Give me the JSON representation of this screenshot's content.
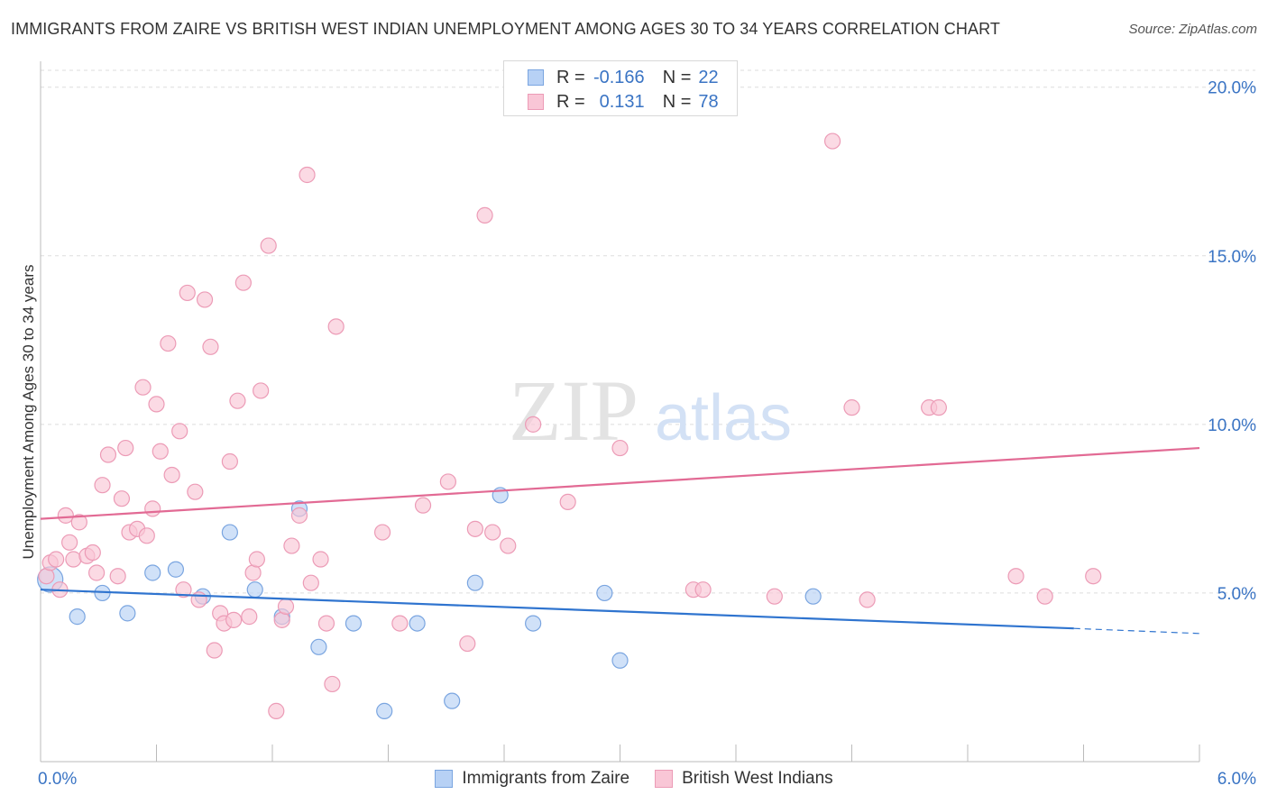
{
  "title": "IMMIGRANTS FROM ZAIRE VS BRITISH WEST INDIAN UNEMPLOYMENT AMONG AGES 30 TO 34 YEARS CORRELATION CHART",
  "source": "Source: ZipAtlas.com",
  "watermark": {
    "zip": "ZIP",
    "atlas": "atlas"
  },
  "legend": {
    "r_label": "R =",
    "n_label": "N =",
    "series": [
      {
        "name": "Immigrants from Zaire",
        "r": "-0.166",
        "n": "22"
      },
      {
        "name": "British West Indians",
        "r": "0.131",
        "n": "78"
      }
    ]
  },
  "chart_data": {
    "type": "scatter",
    "title": "IMMIGRANTS FROM ZAIRE VS BRITISH WEST INDIAN UNEMPLOYMENT AMONG AGES 30 TO 34 YEARS CORRELATION CHART",
    "xlabel": "",
    "ylabel": "Unemployment Among Ages 30 to 34 years",
    "xlim": [
      0,
      6
    ],
    "ylim": [
      0,
      20.5
    ],
    "x_tick_labels": [
      "0.0%",
      "6.0%"
    ],
    "y_ticks": [
      5,
      10,
      15,
      20
    ],
    "y_tick_labels": [
      "5.0%",
      "10.0%",
      "15.0%",
      "20.0%"
    ],
    "grid": true,
    "legend_position": "top-center",
    "colors": {
      "zaire_fill": "#b7d1f5",
      "zaire_stroke": "#7aa5e0",
      "zaire_line": "#2f74cf",
      "bwi_fill": "#f9c6d6",
      "bwi_stroke": "#ec9bb6",
      "bwi_line": "#e26a94",
      "tick_label": "#3a74c4"
    },
    "series": [
      {
        "name": "Immigrants from Zaire",
        "r": -0.166,
        "n": 22,
        "trend": {
          "x0": 0.0,
          "y0": 5.1,
          "x1": 5.35,
          "y1": 3.95,
          "dash_x1": 6.0,
          "dash_y1": 3.8
        },
        "points": [
          [
            0.05,
            5.4
          ],
          [
            0.19,
            4.3
          ],
          [
            0.32,
            5.0
          ],
          [
            0.45,
            4.4
          ],
          [
            0.58,
            5.6
          ],
          [
            0.7,
            5.7
          ],
          [
            0.84,
            4.9
          ],
          [
            0.98,
            6.8
          ],
          [
            1.11,
            5.1
          ],
          [
            1.25,
            4.3
          ],
          [
            1.34,
            7.5
          ],
          [
            1.44,
            3.4
          ],
          [
            1.62,
            4.1
          ],
          [
            1.78,
            1.5
          ],
          [
            1.95,
            4.1
          ],
          [
            2.13,
            1.8
          ],
          [
            2.25,
            5.3
          ],
          [
            2.38,
            7.9
          ],
          [
            2.55,
            4.1
          ],
          [
            2.92,
            5.0
          ],
          [
            3.0,
            3.0
          ],
          [
            4.0,
            4.9
          ]
        ]
      },
      {
        "name": "British West Indians",
        "r": 0.131,
        "n": 78,
        "trend": {
          "x0": 0.0,
          "y0": 7.2,
          "x1": 6.0,
          "y1": 9.3
        },
        "points": [
          [
            0.03,
            5.5
          ],
          [
            0.05,
            5.9
          ],
          [
            0.08,
            6.0
          ],
          [
            0.1,
            5.1
          ],
          [
            0.13,
            7.3
          ],
          [
            0.15,
            6.5
          ],
          [
            0.17,
            6.0
          ],
          [
            0.2,
            7.1
          ],
          [
            0.24,
            6.1
          ],
          [
            0.27,
            6.2
          ],
          [
            0.29,
            5.6
          ],
          [
            0.32,
            8.2
          ],
          [
            0.35,
            9.1
          ],
          [
            0.4,
            5.5
          ],
          [
            0.42,
            7.8
          ],
          [
            0.44,
            9.3
          ],
          [
            0.46,
            6.8
          ],
          [
            0.5,
            6.9
          ],
          [
            0.53,
            11.1
          ],
          [
            0.55,
            6.7
          ],
          [
            0.58,
            7.5
          ],
          [
            0.6,
            10.6
          ],
          [
            0.62,
            9.2
          ],
          [
            0.66,
            12.4
          ],
          [
            0.68,
            8.5
          ],
          [
            0.72,
            9.8
          ],
          [
            0.74,
            5.1
          ],
          [
            0.76,
            13.9
          ],
          [
            0.8,
            8.0
          ],
          [
            0.82,
            4.8
          ],
          [
            0.85,
            13.7
          ],
          [
            0.88,
            12.3
          ],
          [
            0.9,
            3.3
          ],
          [
            0.93,
            4.4
          ],
          [
            0.95,
            4.1
          ],
          [
            0.98,
            8.9
          ],
          [
            1.0,
            4.2
          ],
          [
            1.02,
            10.7
          ],
          [
            1.05,
            14.2
          ],
          [
            1.08,
            4.3
          ],
          [
            1.1,
            5.6
          ],
          [
            1.12,
            6.0
          ],
          [
            1.14,
            11.0
          ],
          [
            1.18,
            15.3
          ],
          [
            1.22,
            1.5
          ],
          [
            1.25,
            4.2
          ],
          [
            1.27,
            4.6
          ],
          [
            1.3,
            6.4
          ],
          [
            1.34,
            7.3
          ],
          [
            1.38,
            17.4
          ],
          [
            1.4,
            5.3
          ],
          [
            1.45,
            6.0
          ],
          [
            1.48,
            4.1
          ],
          [
            1.51,
            2.3
          ],
          [
            1.53,
            12.9
          ],
          [
            1.77,
            6.8
          ],
          [
            1.86,
            4.1
          ],
          [
            1.98,
            7.6
          ],
          [
            2.11,
            8.3
          ],
          [
            2.21,
            3.5
          ],
          [
            2.25,
            6.9
          ],
          [
            2.3,
            16.2
          ],
          [
            2.34,
            6.8
          ],
          [
            2.42,
            6.4
          ],
          [
            2.55,
            10.0
          ],
          [
            2.73,
            7.7
          ],
          [
            3.0,
            9.3
          ],
          [
            3.38,
            5.1
          ],
          [
            3.43,
            5.1
          ],
          [
            3.8,
            4.9
          ],
          [
            4.1,
            18.4
          ],
          [
            4.2,
            10.5
          ],
          [
            4.28,
            4.8
          ],
          [
            4.6,
            10.5
          ],
          [
            4.65,
            10.5
          ],
          [
            5.05,
            5.5
          ],
          [
            5.2,
            4.9
          ],
          [
            5.45,
            5.5
          ]
        ]
      }
    ]
  }
}
